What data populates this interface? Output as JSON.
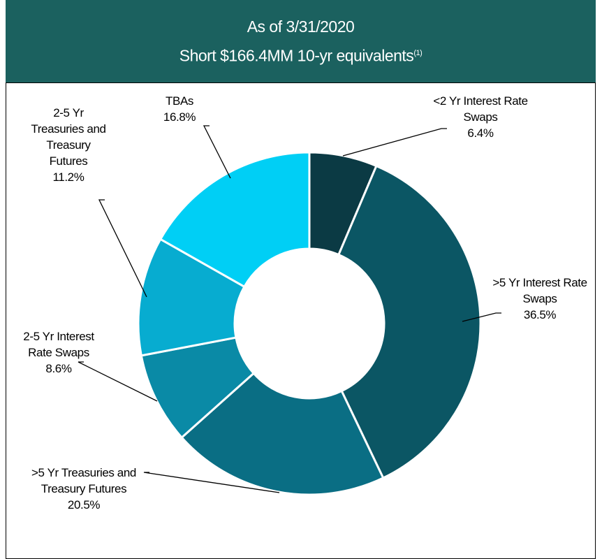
{
  "chart_data": {
    "type": "donut",
    "title": "As of 3/31/2020",
    "subtitle": "Short $166.4MM 10-yr equivalents",
    "footnote_marker": "(1)",
    "categories": [
      "<2 Yr Interest Rate Swaps",
      ">5 Yr Interest Rate Swaps",
      ">5 Yr Treasuries and Treasury Futures",
      "2-5 Yr Interest Rate Swaps",
      "2-5 Yr Treasuries and Treasury Futures",
      "TBAs"
    ],
    "values": [
      6.4,
      36.5,
      20.5,
      8.6,
      11.2,
      16.8
    ],
    "value_labels": [
      "6.4%",
      "36.5%",
      "20.5%",
      "8.6%",
      "11.2%",
      "16.8%"
    ],
    "colors": [
      "#0b3a44",
      "#0b5664",
      "#0a6e84",
      "#0a8aa6",
      "#07acd0",
      "#00cff5"
    ]
  }
}
